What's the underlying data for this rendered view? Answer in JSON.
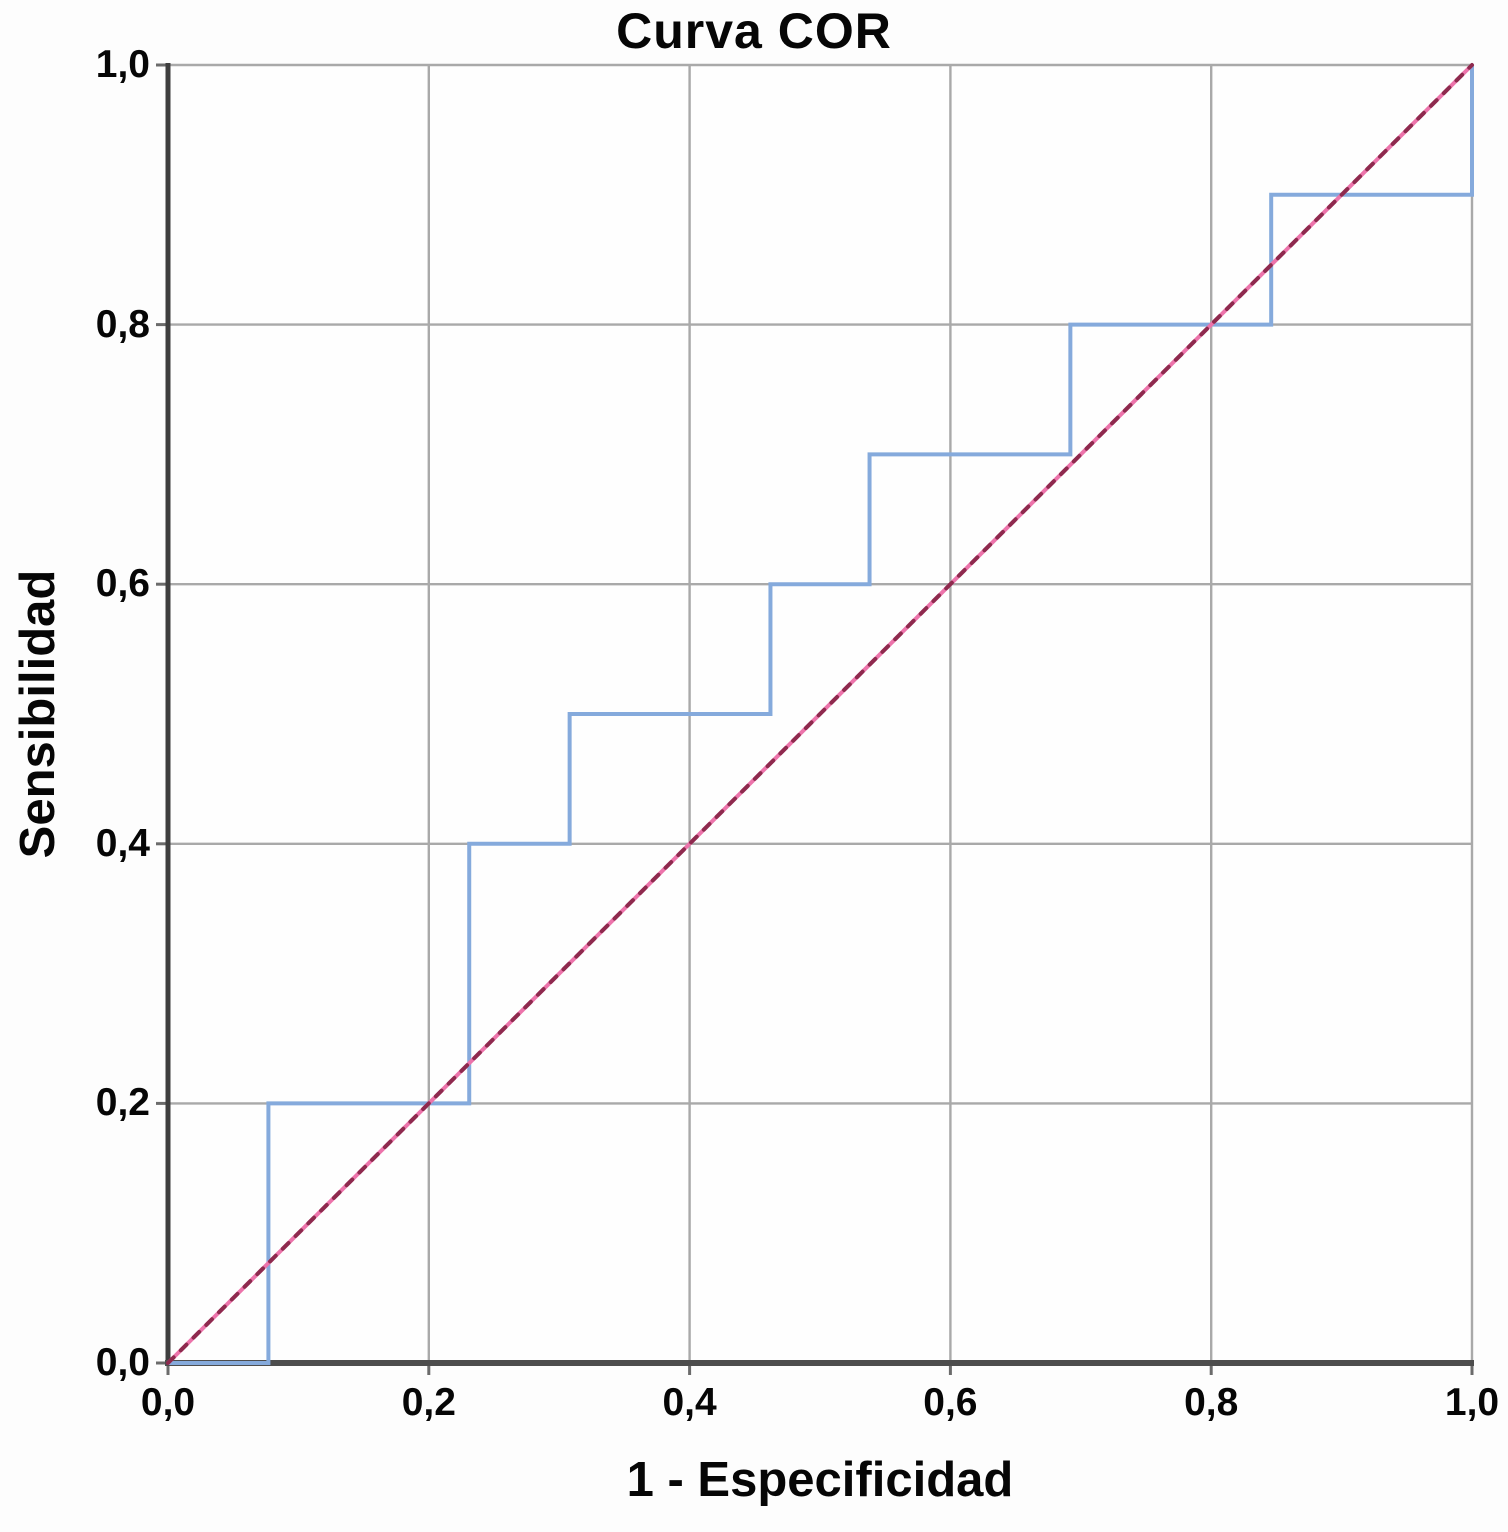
{
  "figure": {
    "title": "Curva COR",
    "x_axis_title": "1 - Especificidad",
    "y_axis_title": "Sensibilidad"
  },
  "chart_data": {
    "type": "line",
    "subtype": "roc-step-curve",
    "title": "Curva COR",
    "xlabel": "1 - Especificidad",
    "ylabel": "Sensibilidad",
    "xlim": [
      0.0,
      1.0
    ],
    "ylim": [
      0.0,
      1.0
    ],
    "grid": true,
    "legend_position": "none",
    "x_ticks": {
      "values": [
        0.0,
        0.2,
        0.4,
        0.6,
        0.8,
        1.0
      ],
      "labels": [
        "0,0",
        "0,2",
        "0,4",
        "0,6",
        "0,8",
        "1,0"
      ]
    },
    "y_ticks": {
      "values": [
        0.0,
        0.2,
        0.4,
        0.6,
        0.8,
        1.0
      ],
      "labels": [
        "0,0",
        "0,2",
        "0,4",
        "0,6",
        "0,8",
        "1,0"
      ]
    },
    "series": [
      {
        "name": "roc-curve",
        "color": "#85aadc",
        "line_width": 4,
        "points": [
          [
            0.0,
            0.0
          ],
          [
            0.077,
            0.0
          ],
          [
            0.077,
            0.2
          ],
          [
            0.231,
            0.2
          ],
          [
            0.231,
            0.4
          ],
          [
            0.308,
            0.4
          ],
          [
            0.308,
            0.5
          ],
          [
            0.462,
            0.5
          ],
          [
            0.462,
            0.6
          ],
          [
            0.538,
            0.6
          ],
          [
            0.538,
            0.7
          ],
          [
            0.692,
            0.7
          ],
          [
            0.692,
            0.8
          ],
          [
            0.846,
            0.8
          ],
          [
            0.846,
            0.9
          ],
          [
            1.0,
            0.9
          ],
          [
            1.0,
            1.0
          ]
        ]
      },
      {
        "name": "reference-diagonal",
        "color": "#ec74ab",
        "dash_color": "#8e2a4e",
        "line_width": 4,
        "points": [
          [
            0.0,
            0.0
          ],
          [
            1.0,
            1.0
          ]
        ]
      }
    ],
    "colors": {
      "grid": "#a9a9a9",
      "axis_bottom": "#4d4d4d",
      "axis_left": "#3e3e3e",
      "tick": "#6b6b6b",
      "frame": "#a9a9a9",
      "text": "#060606",
      "plot_background": "#fefefe"
    }
  }
}
